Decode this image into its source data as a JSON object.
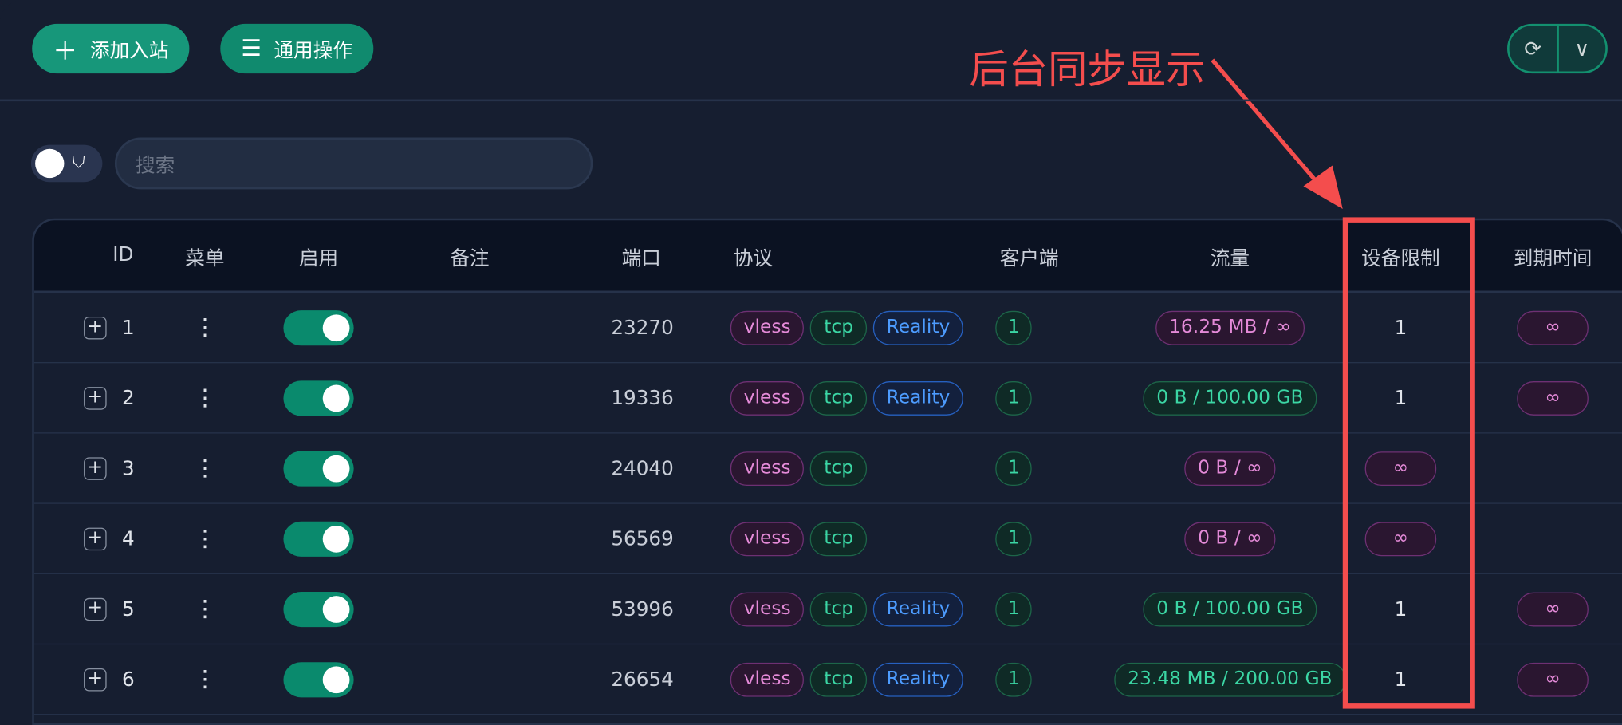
{
  "toolbar": {
    "add_inbound": "添加入站",
    "general_actions": "通用操作",
    "add_icon": "plus-icon",
    "menu_icon": "menu-icon",
    "refresh_icon": "refresh-icon",
    "dropdown_icon": "chevron-down-icon"
  },
  "search": {
    "placeholder": "搜索"
  },
  "annotation": {
    "text": "后台同步显示",
    "color": "#f44d4d"
  },
  "table": {
    "headers": {
      "id": "ID",
      "menu": "菜单",
      "enable": "启用",
      "remark": "备注",
      "port": "端口",
      "protocol": "协议",
      "clients": "客户端",
      "traffic": "流量",
      "device_limit": "设备限制",
      "expiry": "到期时间"
    },
    "rows": [
      {
        "id": "1",
        "enabled": true,
        "port": "23270",
        "tags": [
          "vless",
          "tcp",
          "Reality"
        ],
        "clients": "1",
        "traffic": "16.25 MB / ∞",
        "traffic_style": "purple",
        "device_limit": "1",
        "expiry": "∞"
      },
      {
        "id": "2",
        "enabled": true,
        "port": "19336",
        "tags": [
          "vless",
          "tcp",
          "Reality"
        ],
        "clients": "1",
        "traffic": "0 B / 100.00 GB",
        "traffic_style": "green",
        "device_limit": "1",
        "expiry": "∞"
      },
      {
        "id": "3",
        "enabled": true,
        "port": "24040",
        "tags": [
          "vless",
          "tcp"
        ],
        "clients": "1",
        "traffic": "0 B / ∞",
        "traffic_style": "purple",
        "device_limit": "∞",
        "expiry": ""
      },
      {
        "id": "4",
        "enabled": true,
        "port": "56569",
        "tags": [
          "vless",
          "tcp"
        ],
        "clients": "1",
        "traffic": "0 B / ∞",
        "traffic_style": "purple",
        "device_limit": "∞",
        "expiry": ""
      },
      {
        "id": "5",
        "enabled": true,
        "port": "53996",
        "tags": [
          "vless",
          "tcp",
          "Reality"
        ],
        "clients": "1",
        "traffic": "0 B / 100.00 GB",
        "traffic_style": "green",
        "device_limit": "1",
        "expiry": "∞"
      },
      {
        "id": "6",
        "enabled": true,
        "port": "26654",
        "tags": [
          "vless",
          "tcp",
          "Reality"
        ],
        "clients": "1",
        "traffic": "23.48 MB / 200.00 GB",
        "traffic_style": "green",
        "device_limit": "1",
        "expiry": "∞"
      }
    ]
  }
}
